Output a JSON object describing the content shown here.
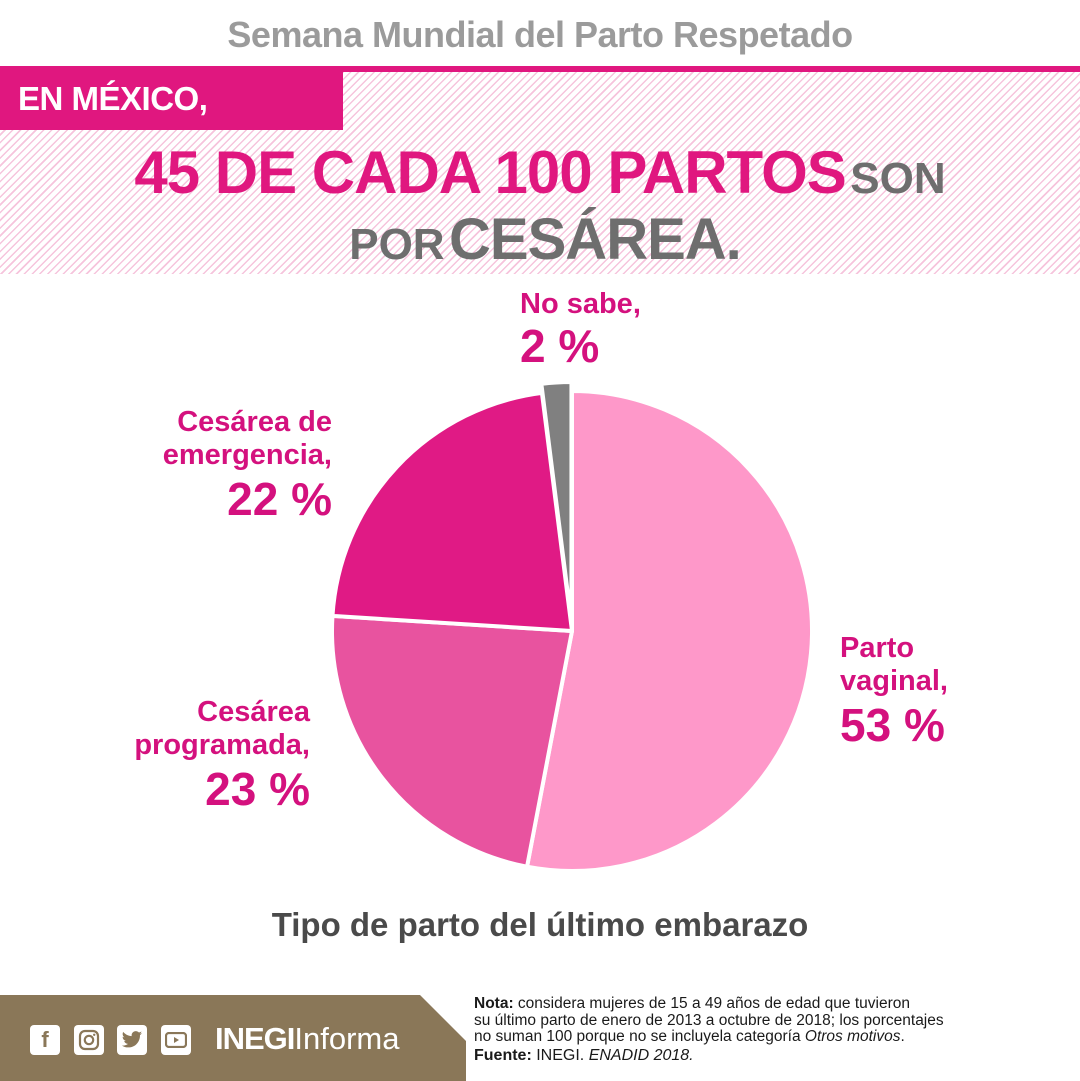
{
  "header": {
    "top_title": "Semana Mundial del Parto Respetado",
    "kicker": "EN MÉXICO,",
    "headline_pink": "45 DE CADA 100 PARTOS",
    "headline_gray_1": "SON",
    "headline_gray_2": "POR",
    "headline_gray_big": "CESÁREA."
  },
  "colors": {
    "accent": "#e0177f",
    "label_text": "#d4117e",
    "title_gray": "#9b9b9b",
    "footer_brown": "#8a7758"
  },
  "chart_data": {
    "type": "pie",
    "title": "Tipo de parto del último embarazo",
    "start_angle_deg": 0,
    "direction": "clockwise",
    "slices": [
      {
        "label": "Parto vaginal,",
        "value": 53,
        "display": "53 %",
        "color": "#fe98c9"
      },
      {
        "label": "Cesárea programada,",
        "value": 23,
        "display": "23 %",
        "color": "#e8539f"
      },
      {
        "label": "Cesárea de emergencia,",
        "value": 22,
        "display": "22 %",
        "color": "#e01a85"
      },
      {
        "label": "No sabe,",
        "value": 2,
        "display": "2 %",
        "color": "#808080",
        "exploded": true
      }
    ],
    "unit": "%"
  },
  "labels": {
    "vaginal": {
      "line1": "Parto",
      "line2": "vaginal,",
      "pct": "53 %"
    },
    "programada": {
      "line1": "Cesárea",
      "line2": "programada,",
      "pct": "23 %"
    },
    "emergencia": {
      "line1": "Cesárea de",
      "line2": "emergencia,",
      "pct": "22 %"
    },
    "nosabe": {
      "line1": "No sabe,",
      "pct": "2 %"
    }
  },
  "footer": {
    "social_icons": [
      "facebook-icon",
      "instagram-icon",
      "twitter-icon",
      "youtube-icon"
    ],
    "brand_bold": "INEGI",
    "brand_light": "Informa",
    "note_label": "Nota:",
    "note_text_1": " considera mujeres de 15 a 49 años de edad que tuvieron",
    "note_text_2": "su último parto de enero de 2013 a octubre de 2018; los porcentajes",
    "note_text_3": "no suman 100 porque no se incluyela categoría ",
    "note_text_3_italic": "Otros motivos",
    "note_text_3_end": ".",
    "source_label": "Fuente:",
    "source_text": " INEGI. ",
    "source_italic": "ENADID 2018."
  }
}
